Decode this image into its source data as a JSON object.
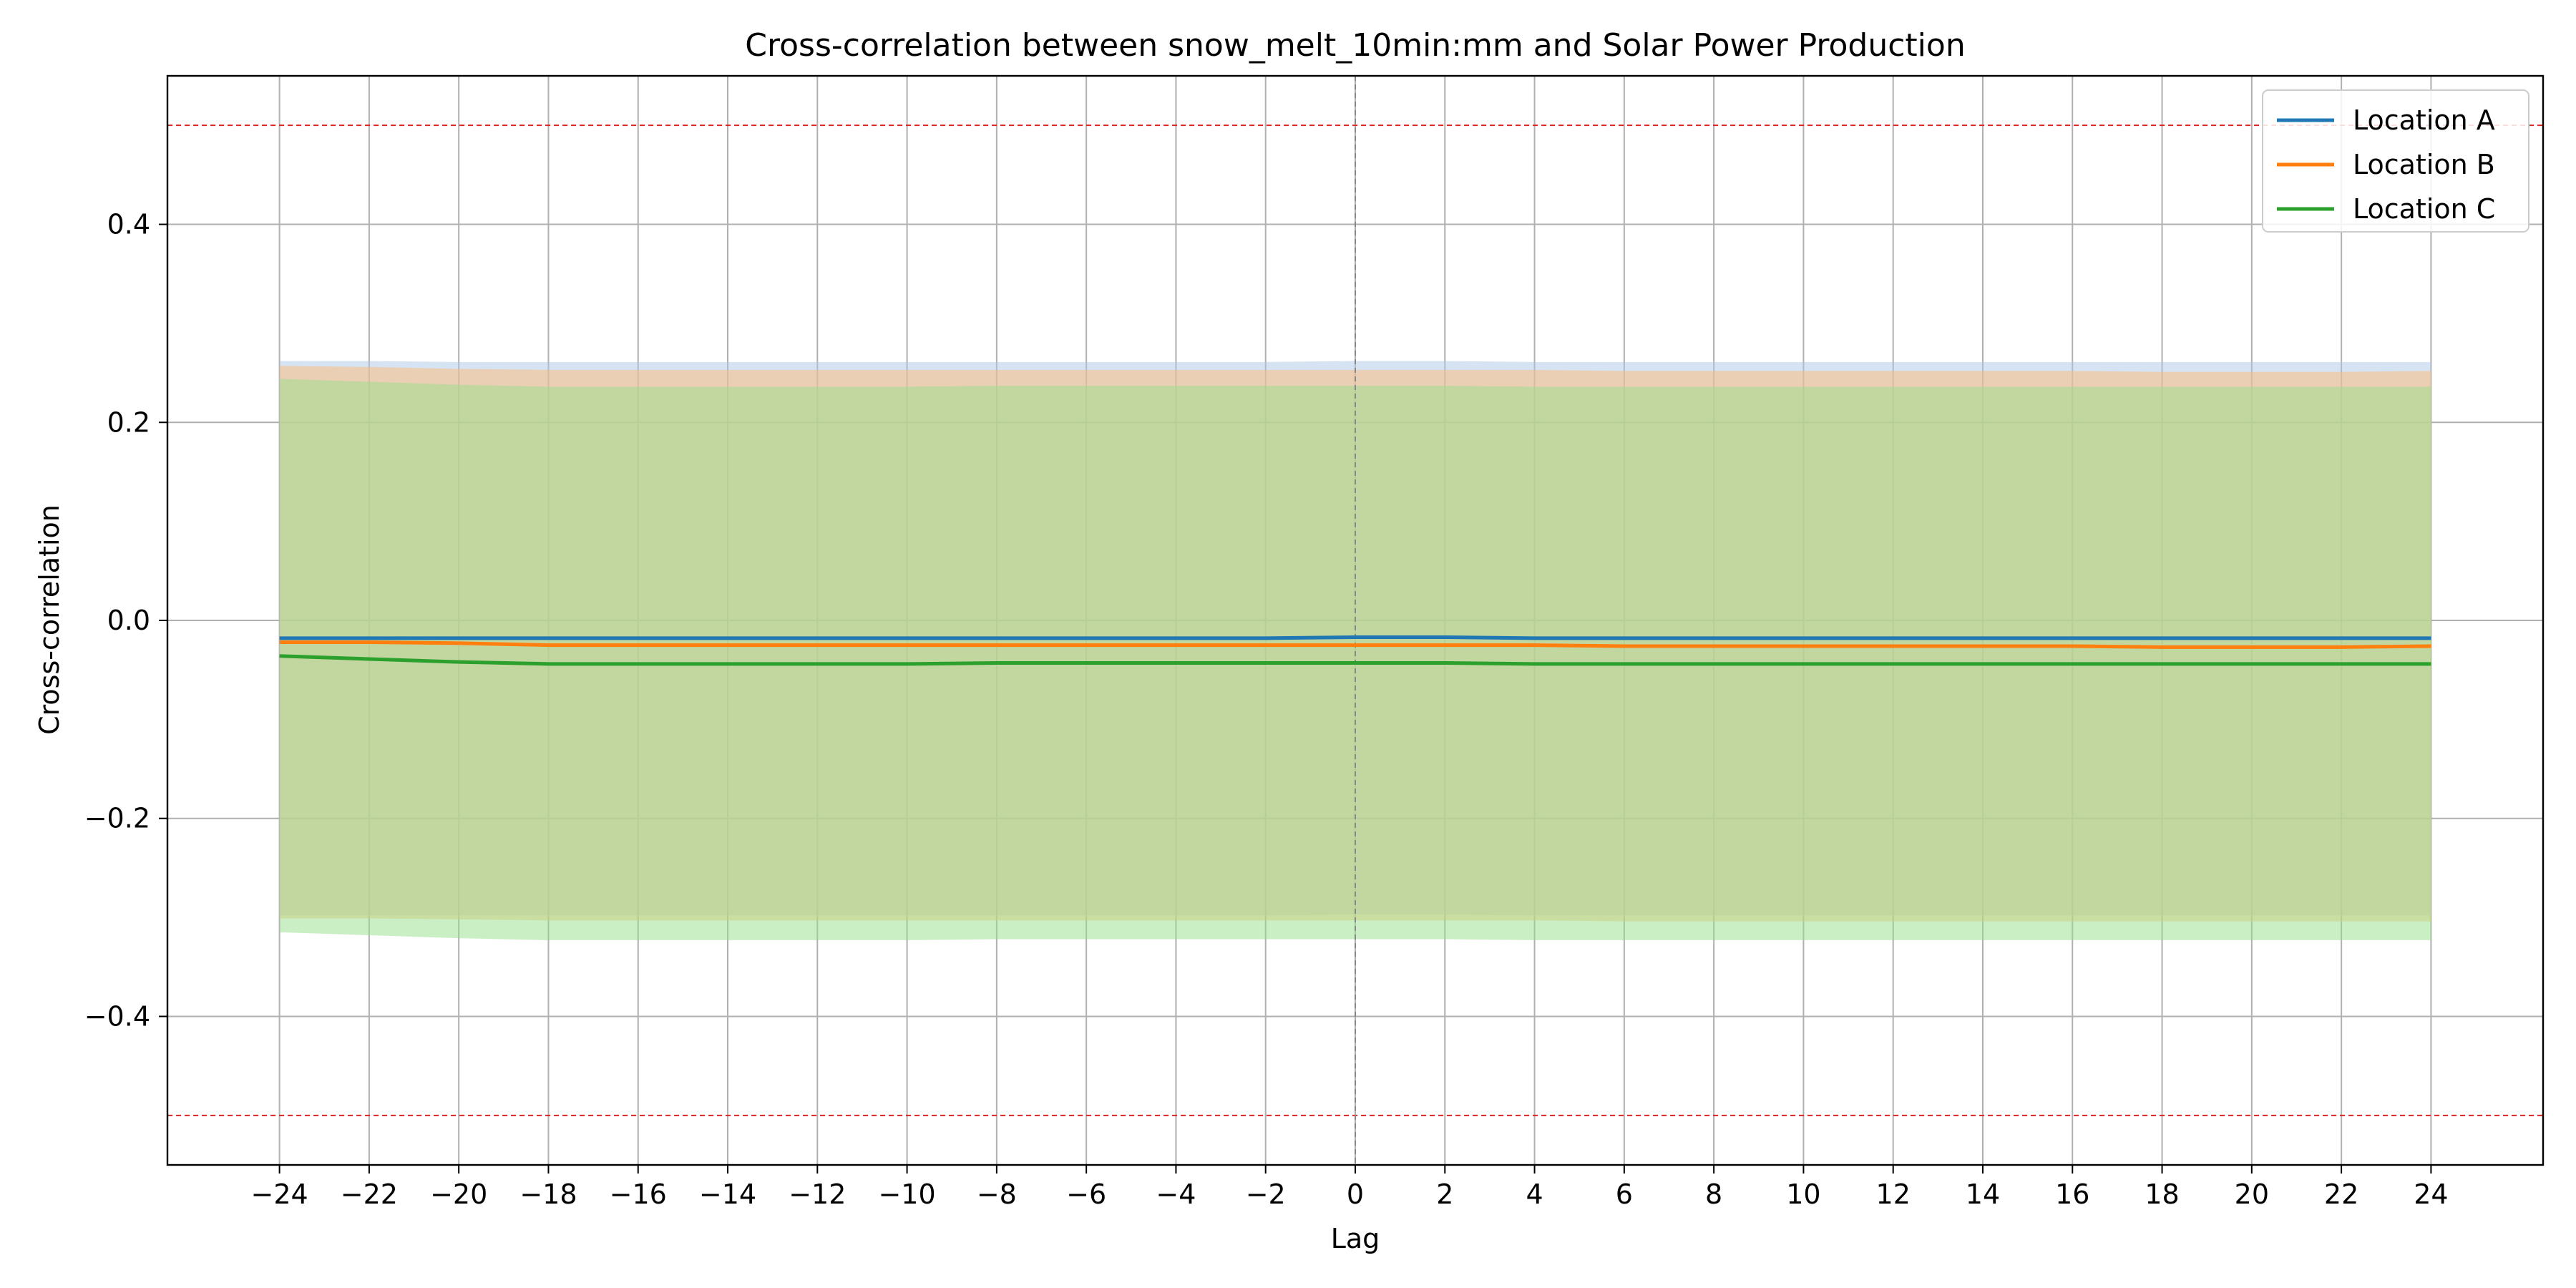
{
  "chart_data": {
    "type": "line",
    "title": "Cross-correlation between snow_melt_10min:mm and Solar Power Production",
    "xlabel": "Lag",
    "ylabel": "Cross-correlation",
    "xlim": [
      -26.5,
      26.5
    ],
    "ylim": [
      -0.55,
      0.55
    ],
    "xticks": [
      -24,
      -22,
      -20,
      -18,
      -16,
      -14,
      -12,
      -10,
      -8,
      -6,
      -4,
      -2,
      0,
      2,
      4,
      6,
      8,
      10,
      12,
      14,
      16,
      18,
      20,
      22,
      24
    ],
    "yticks": [
      -0.4,
      -0.2,
      0.0,
      0.2,
      0.4
    ],
    "ytick_labels": [
      "−0.4",
      "−0.2",
      "0.0",
      "0.2",
      "0.4"
    ],
    "xtick_labels": [
      "−24",
      "−22",
      "−20",
      "−18",
      "−16",
      "−14",
      "−12",
      "−10",
      "−8",
      "−6",
      "−4",
      "−2",
      "0",
      "2",
      "4",
      "6",
      "8",
      "10",
      "12",
      "14",
      "16",
      "18",
      "20",
      "22",
      "24"
    ],
    "grid": true,
    "legend_position": "top-right",
    "reference_lines": {
      "horizontal_dashed": [
        0.5,
        -0.5
      ],
      "horizontal_dashed_color": "#d62728",
      "vertical_dashed": [
        0
      ],
      "vertical_dashed_color": "#888888"
    },
    "x": [
      -24,
      -22,
      -20,
      -18,
      -16,
      -14,
      -12,
      -10,
      -8,
      -6,
      -4,
      -2,
      0,
      2,
      4,
      6,
      8,
      10,
      12,
      14,
      16,
      18,
      20,
      22,
      24
    ],
    "series": [
      {
        "name": "Location A",
        "color": "#1f77b4",
        "values": [
          -0.018,
          -0.018,
          -0.018,
          -0.018,
          -0.018,
          -0.018,
          -0.018,
          -0.018,
          -0.018,
          -0.018,
          -0.018,
          -0.018,
          -0.017,
          -0.017,
          -0.018,
          -0.018,
          -0.018,
          -0.018,
          -0.018,
          -0.018,
          -0.018,
          -0.018,
          -0.018,
          -0.018,
          -0.018
        ],
        "band_upper": [
          0.262,
          0.262,
          0.261,
          0.261,
          0.261,
          0.261,
          0.261,
          0.261,
          0.261,
          0.261,
          0.261,
          0.261,
          0.262,
          0.262,
          0.261,
          0.261,
          0.261,
          0.261,
          0.261,
          0.261,
          0.261,
          0.261,
          0.261,
          0.261,
          0.261
        ],
        "band_lower": [
          -0.298,
          -0.298,
          -0.298,
          -0.298,
          -0.298,
          -0.298,
          -0.298,
          -0.298,
          -0.298,
          -0.298,
          -0.298,
          -0.298,
          -0.297,
          -0.297,
          -0.298,
          -0.298,
          -0.298,
          -0.298,
          -0.298,
          -0.298,
          -0.298,
          -0.298,
          -0.298,
          -0.298,
          -0.298
        ],
        "band_color": "#aec7e8"
      },
      {
        "name": "Location B",
        "color": "#ff7f0e",
        "values": [
          -0.022,
          -0.022,
          -0.023,
          -0.025,
          -0.025,
          -0.025,
          -0.025,
          -0.025,
          -0.025,
          -0.025,
          -0.025,
          -0.025,
          -0.025,
          -0.025,
          -0.025,
          -0.026,
          -0.026,
          -0.026,
          -0.026,
          -0.026,
          -0.026,
          -0.027,
          -0.027,
          -0.027,
          -0.026
        ],
        "band_upper": [
          0.257,
          0.256,
          0.254,
          0.253,
          0.253,
          0.253,
          0.253,
          0.253,
          0.253,
          0.253,
          0.253,
          0.253,
          0.253,
          0.253,
          0.253,
          0.252,
          0.252,
          0.252,
          0.252,
          0.252,
          0.252,
          0.251,
          0.251,
          0.251,
          0.252
        ],
        "band_lower": [
          -0.301,
          -0.301,
          -0.302,
          -0.303,
          -0.303,
          -0.303,
          -0.303,
          -0.303,
          -0.303,
          -0.303,
          -0.303,
          -0.303,
          -0.303,
          -0.303,
          -0.303,
          -0.304,
          -0.304,
          -0.304,
          -0.304,
          -0.304,
          -0.304,
          -0.304,
          -0.304,
          -0.304,
          -0.304
        ],
        "band_color": "#ffbb78"
      },
      {
        "name": "Location C",
        "color": "#2ca02c",
        "values": [
          -0.036,
          -0.039,
          -0.042,
          -0.044,
          -0.044,
          -0.044,
          -0.044,
          -0.044,
          -0.043,
          -0.043,
          -0.043,
          -0.043,
          -0.043,
          -0.043,
          -0.044,
          -0.044,
          -0.044,
          -0.044,
          -0.044,
          -0.044,
          -0.044,
          -0.044,
          -0.044,
          -0.044,
          -0.044
        ],
        "band_upper": [
          0.244,
          0.241,
          0.238,
          0.236,
          0.236,
          0.236,
          0.236,
          0.236,
          0.237,
          0.237,
          0.237,
          0.237,
          0.237,
          0.237,
          0.236,
          0.236,
          0.236,
          0.236,
          0.236,
          0.236,
          0.236,
          0.236,
          0.236,
          0.236,
          0.236
        ],
        "band_lower": [
          -0.315,
          -0.318,
          -0.321,
          -0.323,
          -0.323,
          -0.323,
          -0.323,
          -0.323,
          -0.322,
          -0.322,
          -0.322,
          -0.322,
          -0.322,
          -0.322,
          -0.323,
          -0.323,
          -0.323,
          -0.323,
          -0.323,
          -0.323,
          -0.323,
          -0.323,
          -0.323,
          -0.323,
          -0.323
        ],
        "band_color": "#98df8a"
      }
    ]
  }
}
